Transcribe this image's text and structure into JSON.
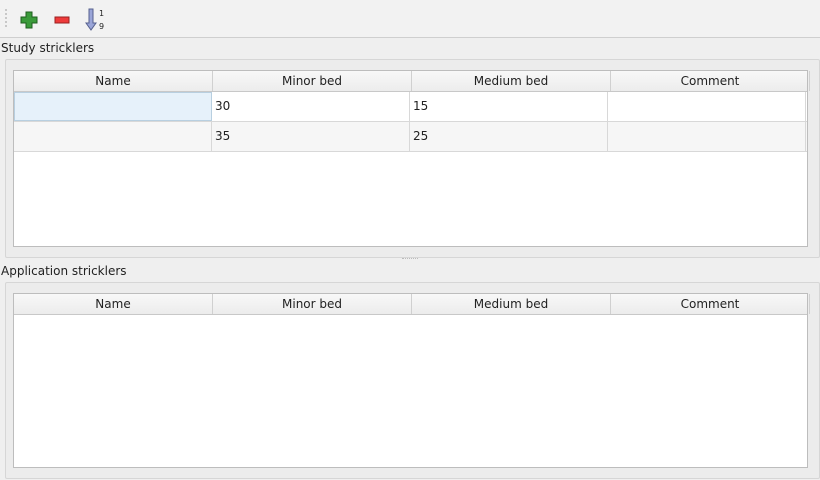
{
  "toolbar": {
    "buttons": [
      {
        "name": "add",
        "icon": "plus-icon",
        "color": "#3a9a3a"
      },
      {
        "name": "remove",
        "icon": "minus-icon",
        "color": "#e02a2a"
      },
      {
        "name": "sort",
        "icon": "sort-numeric-icon",
        "top": "1",
        "bottom": "9"
      }
    ]
  },
  "study": {
    "title": "Study stricklers",
    "columns": [
      "Name",
      "Minor bed",
      "Medium bed",
      "Comment"
    ],
    "rows": [
      [
        "",
        "30",
        "15",
        ""
      ],
      [
        "",
        "35",
        "25",
        ""
      ]
    ]
  },
  "application": {
    "title": "Application stricklers",
    "columns": [
      "Name",
      "Minor bed",
      "Medium bed",
      "Comment"
    ],
    "rows": []
  }
}
